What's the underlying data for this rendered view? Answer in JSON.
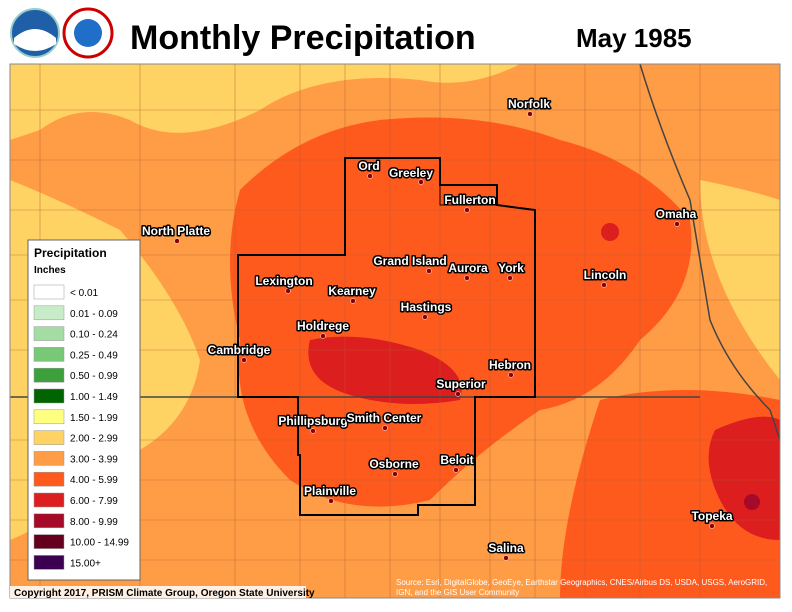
{
  "header": {
    "title": "Monthly Precipitation",
    "date": "May 1985"
  },
  "cities": [
    "Norfolk",
    "Ord",
    "Greeley",
    "Fullerton",
    "Omaha",
    "North Platte",
    "Grand Island",
    "Aurora",
    "York",
    "Lincoln",
    "Lexington",
    "Kearney",
    "Hastings",
    "Holdrege",
    "Cambridge",
    "Hebron",
    "Superior",
    "Phillipsburg",
    "Smith Center",
    "Beloit",
    "Osborne",
    "Plainville",
    "Topeka",
    "Salina"
  ],
  "legend": {
    "title": "Precipitation",
    "subtitle": "Inches",
    "items": [
      {
        "label": "< 0.01",
        "color": "#ffffff"
      },
      {
        "label": "0.01 - 0.09",
        "color": "#c8ecc8"
      },
      {
        "label": "0.10 - 0.24",
        "color": "#a4dca4"
      },
      {
        "label": "0.25 - 0.49",
        "color": "#78c878"
      },
      {
        "label": "0.50 - 0.99",
        "color": "#3ca03c"
      },
      {
        "label": "1.00 - 1.49",
        "color": "#006400"
      },
      {
        "label": "1.50 - 1.99",
        "color": "#ffff80"
      },
      {
        "label": "2.00 - 2.99",
        "color": "#ffd264"
      },
      {
        "label": "3.00 - 3.99",
        "color": "#ff9c46"
      },
      {
        "label": "4.00 - 5.99",
        "color": "#ff5a1e"
      },
      {
        "label": "6.00 - 7.99",
        "color": "#dc1e1e"
      },
      {
        "label": "8.00 - 9.99",
        "color": "#a50a28"
      },
      {
        "label": "10.00 - 14.99",
        "color": "#64001e"
      },
      {
        "label": "15.00+",
        "color": "#3c0050"
      }
    ]
  },
  "credits": {
    "copyright": "Copyright 2017, PRISM Climate Group, Oregon State University",
    "source": [
      "Source: Esri, DigitalGlobe, GeoEye, Earthstar Geographics, CNES/Airbus DS, USDA, USGS, AeroGRID,",
      "IGN, and the GIS User Community"
    ]
  }
}
